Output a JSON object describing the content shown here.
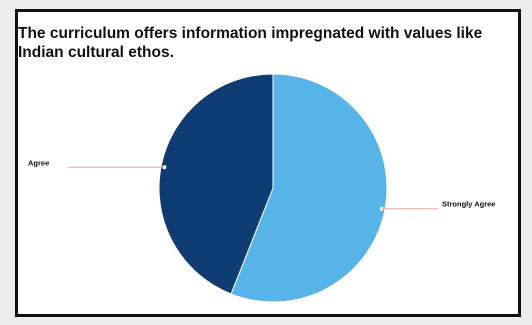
{
  "chart_data": {
    "type": "pie",
    "title": "The curriculum offers information impregnated with values like Indian cultural ethos.",
    "slices": [
      {
        "label": "Strongly Agree",
        "value": 56,
        "color": "#56b4e9"
      },
      {
        "label": "Agree",
        "value": 44,
        "color": "#0f3d73"
      }
    ],
    "leader_line_color": "#e8a8a8"
  }
}
